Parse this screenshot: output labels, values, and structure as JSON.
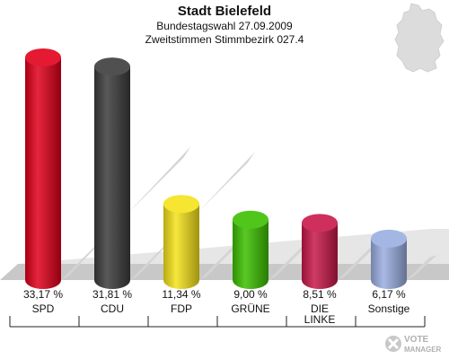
{
  "header": {
    "title": "Stadt Bielefeld",
    "subtitle1": "Bundestagswahl 27.09.2009",
    "subtitle2": "Zweitstimmen Stimmbezirk 027.4"
  },
  "logo": {
    "line1": "VOTE",
    "line2": "MANAGER",
    "icon": "checkmark-x-icon"
  },
  "map": {
    "icon": "germany-map-icon",
    "color": "#d9d9d9"
  },
  "chart_data": {
    "type": "bar",
    "title": "Stadt Bielefeld",
    "categories": [
      "SPD",
      "CDU",
      "FDP",
      "GRÜNE",
      "DIE LINKE",
      "Sonstige"
    ],
    "category_lines": [
      [
        "SPD"
      ],
      [
        "CDU"
      ],
      [
        "FDP"
      ],
      [
        "GRÜNE"
      ],
      [
        "DIE",
        "LINKE"
      ],
      [
        "Sonstige"
      ]
    ],
    "values": [
      33.17,
      31.81,
      11.34,
      9.0,
      8.51,
      6.17
    ],
    "value_labels": [
      "33,17 %",
      "31,81 %",
      "11,34 %",
      "9,00 %",
      "8,51 %",
      "6,17 %"
    ],
    "colors": [
      "#e0001a",
      "#3c3c3c",
      "#f5e21a",
      "#3cc000",
      "#c8184a",
      "#9aaee0"
    ],
    "ylim": [
      0,
      35
    ],
    "grid": false,
    "legend": "none"
  }
}
